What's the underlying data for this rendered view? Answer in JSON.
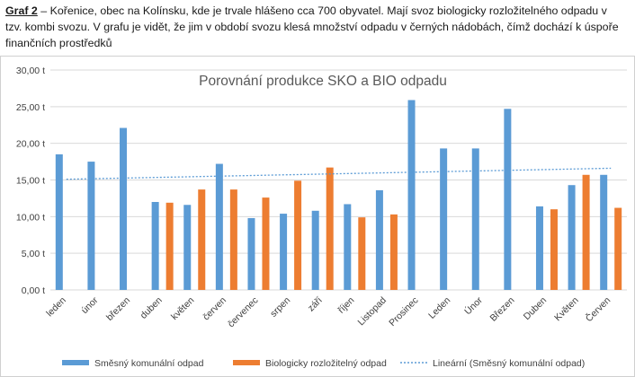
{
  "caption": {
    "label": "Graf 2",
    "text": " – Kořenice, obec na Kolínsku, kde je trvale hlášeno cca 700 obyvatel. Mají svoz biologicky rozložitelného odpadu v tzv. kombi svozu. V grafu je vidět, že jim v období svozu klesá množství odpadu v černých nádobách, čímž dochází k úspoře finančních prostředků"
  },
  "chart_data": {
    "type": "bar",
    "title": "Porovnání produkce SKO a BIO odpadu",
    "categories": [
      "leden",
      "únor",
      "březen",
      "duben",
      "květen",
      "červen",
      "červenec",
      "srpen",
      "září",
      "říjen",
      "Listopad",
      "Prosinec",
      "Leden",
      "Únor",
      "Březen",
      "Duben",
      "Květen",
      "Červen"
    ],
    "series": [
      {
        "name": "Směsný komunální odpad",
        "color": "#5b9bd5",
        "values": [
          18.5,
          17.5,
          22.1,
          12.0,
          11.6,
          17.2,
          9.8,
          10.4,
          10.8,
          11.7,
          13.6,
          25.9,
          19.3,
          19.3,
          24.7,
          11.4,
          14.3,
          15.7
        ]
      },
      {
        "name": "Biologicky rozložitelný odpad",
        "color": "#ed7d31",
        "values": [
          null,
          null,
          null,
          11.9,
          13.7,
          13.7,
          12.6,
          14.9,
          16.7,
          9.9,
          10.3,
          null,
          null,
          null,
          null,
          11.0,
          15.7,
          11.2
        ]
      }
    ],
    "trendline": {
      "name": "Lineární (Směsný komunální odpad)",
      "color": "#5b9bd5",
      "start": 15.1,
      "end": 16.6
    },
    "yticks": [
      "0,00 t",
      "5,00 t",
      "10,00 t",
      "15,00 t",
      "20,00 t",
      "25,00 t",
      "30,00 t"
    ],
    "ylim": [
      0,
      30
    ],
    "grid": true,
    "legend": "bottom"
  }
}
